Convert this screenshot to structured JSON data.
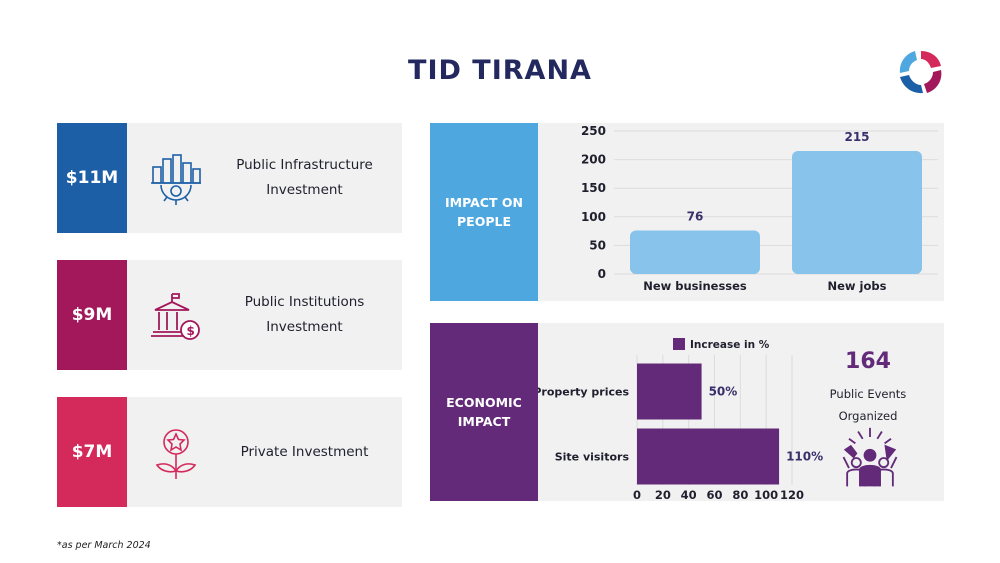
{
  "title": "TID TIRANA",
  "colors": {
    "infra": "#1d5fa6",
    "institutions": "#a2185b",
    "private": "#d42a5b",
    "impact_people": "#4ea8df",
    "economic": "#622a78",
    "bars_people": "#87c3ea",
    "title": "#23285f"
  },
  "investments": [
    {
      "amount": "$11M",
      "label": "Public Infrastructure Investment",
      "icon": "city-gear-icon"
    },
    {
      "amount": "$9M",
      "label": "Public Institutions Investment",
      "icon": "government-building-money-icon"
    },
    {
      "amount": "$7M",
      "label": "Private Investment",
      "icon": "flower-star-icon"
    }
  ],
  "impact_people": {
    "label": "IMPACT ON PEOPLE"
  },
  "economic": {
    "label": "ECONOMIC IMPACT",
    "events": {
      "value": "164",
      "label": "Public Events Organized",
      "icon": "celebrating-crowd-icon"
    }
  },
  "footnote": "*as per March 2024",
  "chart_data": [
    {
      "type": "bar",
      "categories": [
        "New businesses",
        "New jobs"
      ],
      "values": [
        76,
        215
      ],
      "value_labels": [
        "76",
        "215"
      ],
      "ylim": [
        0,
        250
      ],
      "yticks": [
        "0",
        "50",
        "100",
        "150",
        "200",
        "250"
      ],
      "grid": true
    },
    {
      "type": "bar",
      "orientation": "horizontal",
      "categories": [
        "Property prices",
        "Site visitors"
      ],
      "series": [
        {
          "name": "Increase in %",
          "values": [
            50,
            110
          ]
        }
      ],
      "value_labels": [
        "50%",
        "110%"
      ],
      "xlim": [
        0,
        120
      ],
      "xticks": [
        "0",
        "20",
        "40",
        "60",
        "80",
        "100",
        "120"
      ],
      "legend": "top",
      "grid": true
    }
  ]
}
